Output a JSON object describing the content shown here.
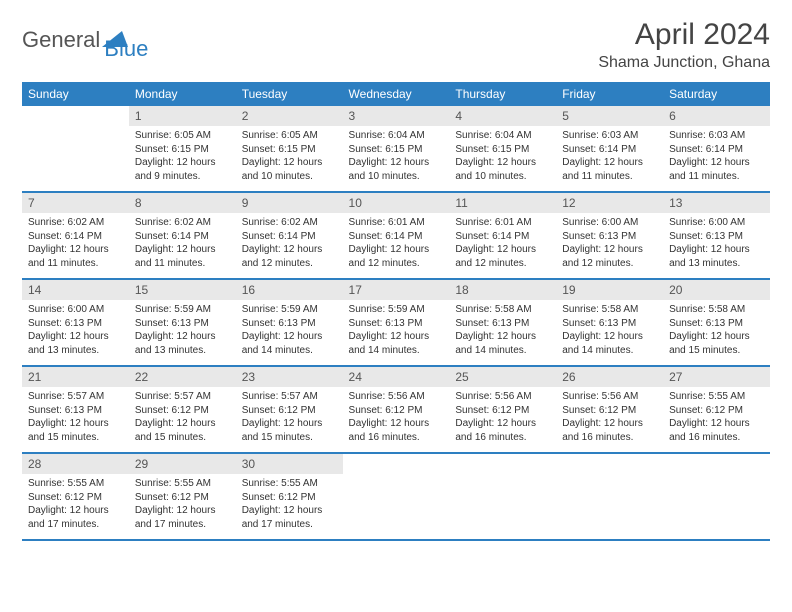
{
  "logo": {
    "text1": "General",
    "text2": "Blue",
    "color1": "#555555",
    "color2": "#2d7fc1"
  },
  "title": "April 2024",
  "location": "Shama Junction, Ghana",
  "colors": {
    "headerBg": "#2d7fc1",
    "headerText": "#ffffff",
    "dayNumBg": "#e8e8e8",
    "rowBorder": "#2d7fc1",
    "bodyText": "#333333"
  },
  "typography": {
    "title_fontsize": 30,
    "location_fontsize": 16,
    "header_fontsize": 12,
    "daynum_fontsize": 12,
    "body_fontsize": 10
  },
  "headers": [
    "Sunday",
    "Monday",
    "Tuesday",
    "Wednesday",
    "Thursday",
    "Friday",
    "Saturday"
  ],
  "weeks": [
    [
      {
        "n": "",
        "sr": "",
        "ss": "",
        "dl": ""
      },
      {
        "n": "1",
        "sr": "6:05 AM",
        "ss": "6:15 PM",
        "dl": "12 hours and 9 minutes."
      },
      {
        "n": "2",
        "sr": "6:05 AM",
        "ss": "6:15 PM",
        "dl": "12 hours and 10 minutes."
      },
      {
        "n": "3",
        "sr": "6:04 AM",
        "ss": "6:15 PM",
        "dl": "12 hours and 10 minutes."
      },
      {
        "n": "4",
        "sr": "6:04 AM",
        "ss": "6:15 PM",
        "dl": "12 hours and 10 minutes."
      },
      {
        "n": "5",
        "sr": "6:03 AM",
        "ss": "6:14 PM",
        "dl": "12 hours and 11 minutes."
      },
      {
        "n": "6",
        "sr": "6:03 AM",
        "ss": "6:14 PM",
        "dl": "12 hours and 11 minutes."
      }
    ],
    [
      {
        "n": "7",
        "sr": "6:02 AM",
        "ss": "6:14 PM",
        "dl": "12 hours and 11 minutes."
      },
      {
        "n": "8",
        "sr": "6:02 AM",
        "ss": "6:14 PM",
        "dl": "12 hours and 11 minutes."
      },
      {
        "n": "9",
        "sr": "6:02 AM",
        "ss": "6:14 PM",
        "dl": "12 hours and 12 minutes."
      },
      {
        "n": "10",
        "sr": "6:01 AM",
        "ss": "6:14 PM",
        "dl": "12 hours and 12 minutes."
      },
      {
        "n": "11",
        "sr": "6:01 AM",
        "ss": "6:14 PM",
        "dl": "12 hours and 12 minutes."
      },
      {
        "n": "12",
        "sr": "6:00 AM",
        "ss": "6:13 PM",
        "dl": "12 hours and 12 minutes."
      },
      {
        "n": "13",
        "sr": "6:00 AM",
        "ss": "6:13 PM",
        "dl": "12 hours and 13 minutes."
      }
    ],
    [
      {
        "n": "14",
        "sr": "6:00 AM",
        "ss": "6:13 PM",
        "dl": "12 hours and 13 minutes."
      },
      {
        "n": "15",
        "sr": "5:59 AM",
        "ss": "6:13 PM",
        "dl": "12 hours and 13 minutes."
      },
      {
        "n": "16",
        "sr": "5:59 AM",
        "ss": "6:13 PM",
        "dl": "12 hours and 14 minutes."
      },
      {
        "n": "17",
        "sr": "5:59 AM",
        "ss": "6:13 PM",
        "dl": "12 hours and 14 minutes."
      },
      {
        "n": "18",
        "sr": "5:58 AM",
        "ss": "6:13 PM",
        "dl": "12 hours and 14 minutes."
      },
      {
        "n": "19",
        "sr": "5:58 AM",
        "ss": "6:13 PM",
        "dl": "12 hours and 14 minutes."
      },
      {
        "n": "20",
        "sr": "5:58 AM",
        "ss": "6:13 PM",
        "dl": "12 hours and 15 minutes."
      }
    ],
    [
      {
        "n": "21",
        "sr": "5:57 AM",
        "ss": "6:13 PM",
        "dl": "12 hours and 15 minutes."
      },
      {
        "n": "22",
        "sr": "5:57 AM",
        "ss": "6:12 PM",
        "dl": "12 hours and 15 minutes."
      },
      {
        "n": "23",
        "sr": "5:57 AM",
        "ss": "6:12 PM",
        "dl": "12 hours and 15 minutes."
      },
      {
        "n": "24",
        "sr": "5:56 AM",
        "ss": "6:12 PM",
        "dl": "12 hours and 16 minutes."
      },
      {
        "n": "25",
        "sr": "5:56 AM",
        "ss": "6:12 PM",
        "dl": "12 hours and 16 minutes."
      },
      {
        "n": "26",
        "sr": "5:56 AM",
        "ss": "6:12 PM",
        "dl": "12 hours and 16 minutes."
      },
      {
        "n": "27",
        "sr": "5:55 AM",
        "ss": "6:12 PM",
        "dl": "12 hours and 16 minutes."
      }
    ],
    [
      {
        "n": "28",
        "sr": "5:55 AM",
        "ss": "6:12 PM",
        "dl": "12 hours and 17 minutes."
      },
      {
        "n": "29",
        "sr": "5:55 AM",
        "ss": "6:12 PM",
        "dl": "12 hours and 17 minutes."
      },
      {
        "n": "30",
        "sr": "5:55 AM",
        "ss": "6:12 PM",
        "dl": "12 hours and 17 minutes."
      },
      {
        "n": "",
        "sr": "",
        "ss": "",
        "dl": ""
      },
      {
        "n": "",
        "sr": "",
        "ss": "",
        "dl": ""
      },
      {
        "n": "",
        "sr": "",
        "ss": "",
        "dl": ""
      },
      {
        "n": "",
        "sr": "",
        "ss": "",
        "dl": ""
      }
    ]
  ],
  "labels": {
    "sunrise": "Sunrise:",
    "sunset": "Sunset:",
    "daylight": "Daylight:"
  }
}
